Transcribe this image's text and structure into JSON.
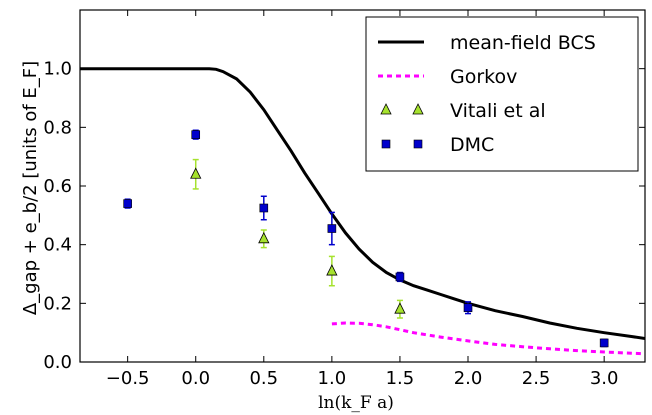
{
  "chart_data": {
    "type": "scatter",
    "xlabel": "ln(k_F a)",
    "ylabel": "Δ_gap + e_b/2 [units of E_F]",
    "xlim": [
      -0.85,
      3.3
    ],
    "ylim": [
      0.0,
      1.2
    ],
    "x_ticks": [
      "−0.5",
      "0.0",
      "0.5",
      "1.0",
      "1.5",
      "2.0",
      "2.5",
      "3.0"
    ],
    "x_tick_values": [
      -0.5,
      0.0,
      0.5,
      1.0,
      1.5,
      2.0,
      2.5,
      3.0
    ],
    "y_ticks": [
      "0.0",
      "0.2",
      "0.4",
      "0.6",
      "0.8",
      "1.0"
    ],
    "y_tick_values": [
      0.0,
      0.2,
      0.4,
      0.6,
      0.8,
      1.0
    ],
    "grid": false,
    "legend_position": "top-right",
    "series": [
      {
        "name": "mean-field BCS",
        "kind": "line",
        "color": "#000000",
        "style": "solid",
        "points": [
          [
            -0.85,
            1.0
          ],
          [
            0.1,
            1.0
          ],
          [
            0.15,
            0.998
          ],
          [
            0.2,
            0.99
          ],
          [
            0.3,
            0.965
          ],
          [
            0.4,
            0.92
          ],
          [
            0.5,
            0.86
          ],
          [
            0.6,
            0.79
          ],
          [
            0.7,
            0.72
          ],
          [
            0.8,
            0.645
          ],
          [
            0.9,
            0.575
          ],
          [
            1.0,
            0.505
          ],
          [
            1.1,
            0.44
          ],
          [
            1.2,
            0.385
          ],
          [
            1.3,
            0.34
          ],
          [
            1.4,
            0.305
          ],
          [
            1.5,
            0.28
          ],
          [
            1.6,
            0.26
          ],
          [
            1.7,
            0.245
          ],
          [
            1.8,
            0.23
          ],
          [
            1.9,
            0.215
          ],
          [
            2.0,
            0.2
          ],
          [
            2.2,
            0.175
          ],
          [
            2.4,
            0.155
          ],
          [
            2.6,
            0.133
          ],
          [
            2.8,
            0.115
          ],
          [
            3.0,
            0.1
          ],
          [
            3.2,
            0.087
          ],
          [
            3.3,
            0.08
          ]
        ]
      },
      {
        "name": "Gorkov",
        "kind": "line",
        "color": "#ff00ff",
        "style": "dashed",
        "points": [
          [
            1.0,
            0.13
          ],
          [
            1.1,
            0.133
          ],
          [
            1.2,
            0.132
          ],
          [
            1.3,
            0.127
          ],
          [
            1.4,
            0.12
          ],
          [
            1.5,
            0.11
          ],
          [
            1.6,
            0.1
          ],
          [
            1.8,
            0.085
          ],
          [
            2.0,
            0.072
          ],
          [
            2.2,
            0.06
          ],
          [
            2.4,
            0.052
          ],
          [
            2.6,
            0.045
          ],
          [
            2.8,
            0.039
          ],
          [
            3.0,
            0.034
          ],
          [
            3.2,
            0.03
          ],
          [
            3.3,
            0.028
          ]
        ]
      },
      {
        "name": "Vitali et al",
        "kind": "scatter",
        "marker": "triangle",
        "color": "#a6e22e",
        "points": [
          {
            "x": 0.0,
            "y": 0.64,
            "err": 0.05
          },
          {
            "x": 0.5,
            "y": 0.42,
            "err": 0.03
          },
          {
            "x": 1.0,
            "y": 0.31,
            "err": 0.05
          },
          {
            "x": 1.5,
            "y": 0.18,
            "err": 0.03
          }
        ]
      },
      {
        "name": "DMC",
        "kind": "scatter",
        "marker": "square",
        "color": "#0000cc",
        "points": [
          {
            "x": -0.5,
            "y": 0.54,
            "err": 0.015
          },
          {
            "x": 0.0,
            "y": 0.775,
            "err": 0.015
          },
          {
            "x": 0.5,
            "y": 0.525,
            "err": 0.04
          },
          {
            "x": 1.0,
            "y": 0.455,
            "err": 0.055
          },
          {
            "x": 1.5,
            "y": 0.29,
            "err": 0.015
          },
          {
            "x": 2.0,
            "y": 0.185,
            "err": 0.02
          },
          {
            "x": 3.0,
            "y": 0.065,
            "err": 0.012
          }
        ]
      }
    ]
  }
}
